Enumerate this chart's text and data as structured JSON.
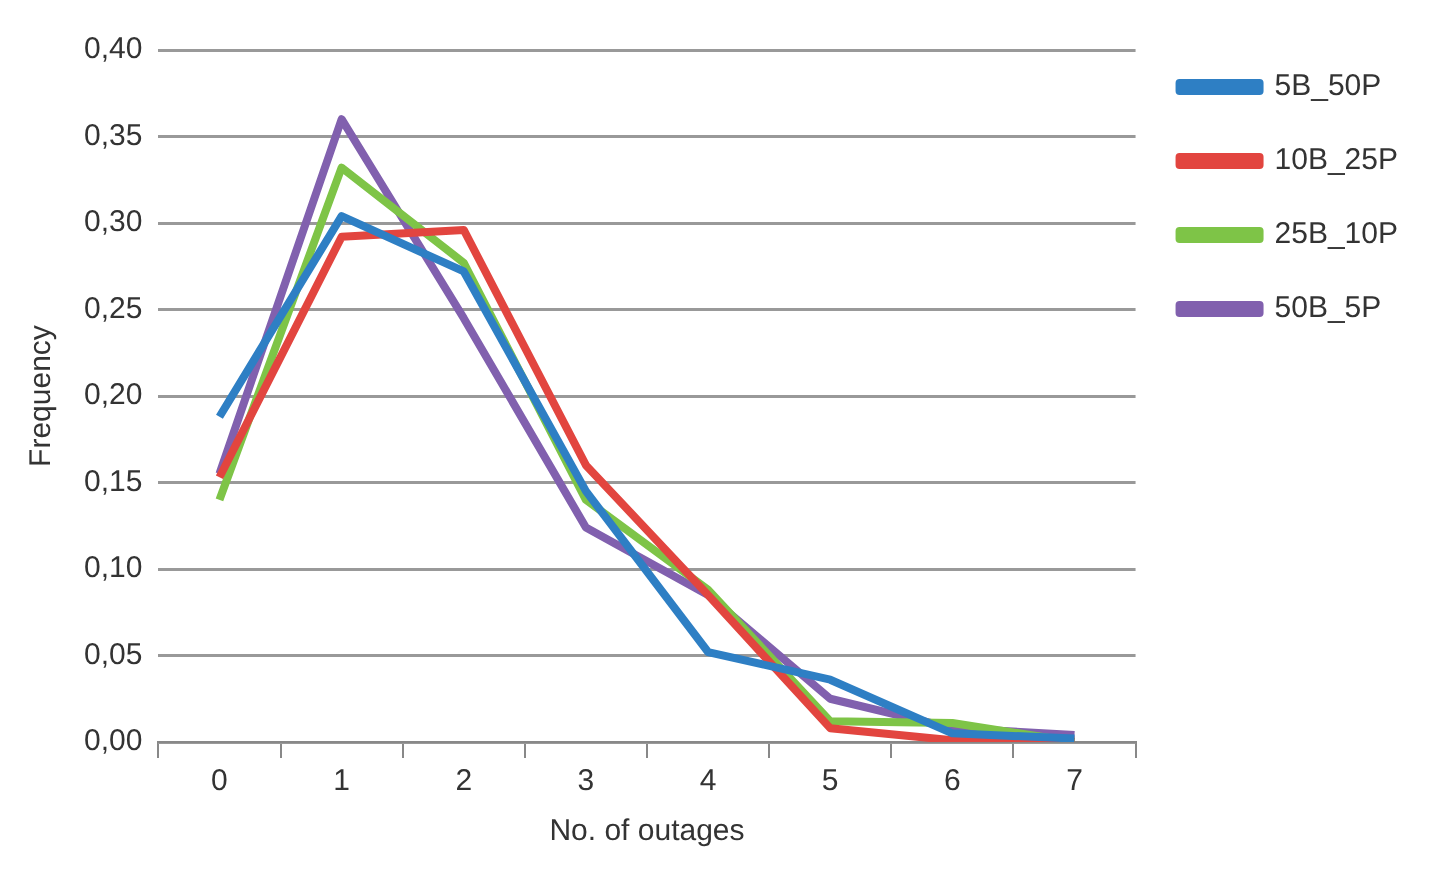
{
  "chart_data": {
    "type": "line",
    "xlabel": "No. of outages",
    "ylabel": "Frequency",
    "categories": [
      "0",
      "1",
      "2",
      "3",
      "4",
      "5",
      "6",
      "7"
    ],
    "series": [
      {
        "name": "5B_50P",
        "color": "#2e7fc4",
        "values": [
          0.188,
          0.304,
          0.272,
          0.145,
          0.052,
          0.036,
          0.005,
          0.002
        ]
      },
      {
        "name": "10B_25P",
        "color": "#e2453f",
        "values": [
          0.153,
          0.292,
          0.296,
          0.16,
          0.085,
          0.008,
          0.001,
          0.001
        ]
      },
      {
        "name": "25B_10P",
        "color": "#7ec447",
        "values": [
          0.14,
          0.332,
          0.277,
          0.14,
          0.088,
          0.012,
          0.011,
          0.0
        ]
      },
      {
        "name": "50B_5P",
        "color": "#8160ae",
        "values": [
          0.155,
          0.36,
          0.245,
          0.124,
          0.085,
          0.025,
          0.008,
          0.004
        ]
      }
    ],
    "ylim": [
      0,
      0.4
    ],
    "yticks": [
      {
        "value": 0,
        "label": "0,00"
      },
      {
        "value": 0.05,
        "label": "0,05"
      },
      {
        "value": 0.1,
        "label": "0,10"
      },
      {
        "value": 0.15,
        "label": "0,15"
      },
      {
        "value": 0.2,
        "label": "0,20"
      },
      {
        "value": 0.25,
        "label": "0,25"
      },
      {
        "value": 0.3,
        "label": "0,30"
      },
      {
        "value": 0.35,
        "label": "0,35"
      },
      {
        "value": 0.4,
        "label": "0,40"
      }
    ],
    "grid": "y",
    "legend": "top right",
    "marker": "none",
    "line_style": "solid"
  }
}
